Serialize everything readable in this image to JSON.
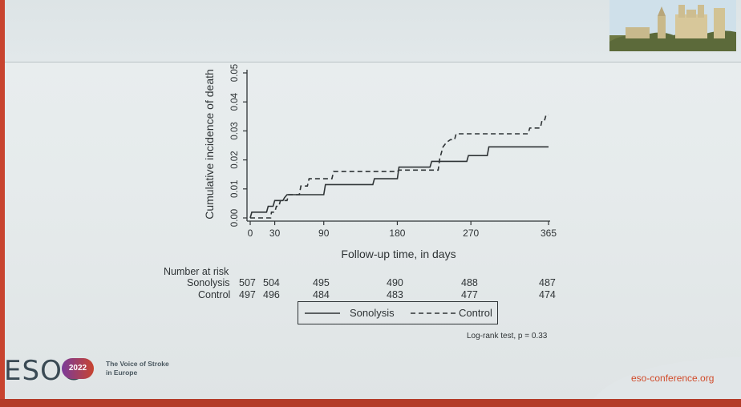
{
  "chart_data": {
    "type": "step-line",
    "ylabel": "Cumulative incidence of death",
    "xlabel": "Follow-up time, in days",
    "x_ticks": [
      0,
      30,
      90,
      180,
      270,
      365
    ],
    "y_ticks": [
      "0.00",
      "0.01",
      "0.02",
      "0.03",
      "0.04",
      "0.05"
    ],
    "xlim": [
      0,
      365
    ],
    "ylim": [
      0,
      0.05
    ],
    "series": [
      {
        "name": "Sonolysis",
        "style": "solid",
        "points": [
          [
            0,
            0
          ],
          [
            2,
            0.002
          ],
          [
            20,
            0.002
          ],
          [
            22,
            0.004
          ],
          [
            28,
            0.004
          ],
          [
            30,
            0.006
          ],
          [
            40,
            0.006
          ],
          [
            42,
            0.007
          ],
          [
            45,
            0.008
          ],
          [
            90,
            0.008
          ],
          [
            92,
            0.0115
          ],
          [
            150,
            0.0115
          ],
          [
            152,
            0.0135
          ],
          [
            180,
            0.0135
          ],
          [
            182,
            0.0175
          ],
          [
            220,
            0.0175
          ],
          [
            222,
            0.0195
          ],
          [
            265,
            0.0195
          ],
          [
            267,
            0.0215
          ],
          [
            290,
            0.0215
          ],
          [
            292,
            0.0245
          ],
          [
            365,
            0.0245
          ]
        ]
      },
      {
        "name": "Control",
        "style": "dashed",
        "points": [
          [
            0,
            0
          ],
          [
            25,
            0
          ],
          [
            26,
            0.002
          ],
          [
            30,
            0.002
          ],
          [
            32,
            0.004
          ],
          [
            35,
            0.004
          ],
          [
            37,
            0.006
          ],
          [
            45,
            0.006
          ],
          [
            47,
            0.008
          ],
          [
            60,
            0.008
          ],
          [
            62,
            0.011
          ],
          [
            70,
            0.011
          ],
          [
            72,
            0.0135
          ],
          [
            100,
            0.0135
          ],
          [
            102,
            0.016
          ],
          [
            180,
            0.016
          ],
          [
            182,
            0.0165
          ],
          [
            230,
            0.0165
          ],
          [
            232,
            0.0205
          ],
          [
            236,
            0.0245
          ],
          [
            240,
            0.026
          ],
          [
            245,
            0.027
          ],
          [
            250,
            0.027
          ],
          [
            252,
            0.029
          ],
          [
            340,
            0.029
          ],
          [
            342,
            0.031
          ],
          [
            355,
            0.031
          ],
          [
            357,
            0.0335
          ],
          [
            360,
            0.0335
          ],
          [
            362,
            0.0355
          ],
          [
            365,
            0.0355
          ]
        ]
      }
    ],
    "number_at_risk": {
      "title": "Number at risk",
      "rows": [
        {
          "label": "Sonolysis",
          "values": [
            "507",
            "504",
            "495",
            "490",
            "488",
            "487"
          ]
        },
        {
          "label": "Control",
          "values": [
            "497",
            "496",
            "484",
            "483",
            "477",
            "474"
          ]
        }
      ]
    },
    "annotation": "Log-rank test,  p = 0.33",
    "legend": {
      "position": "bottom"
    }
  },
  "footer": {
    "brand": "ESOC",
    "year": "2022",
    "tagline_1": "The Voice of Stroke",
    "tagline_2": "in Europe",
    "url": "eso-conference.org"
  },
  "colors": {
    "line": "#2f3436",
    "accent": "#d14b2a"
  }
}
